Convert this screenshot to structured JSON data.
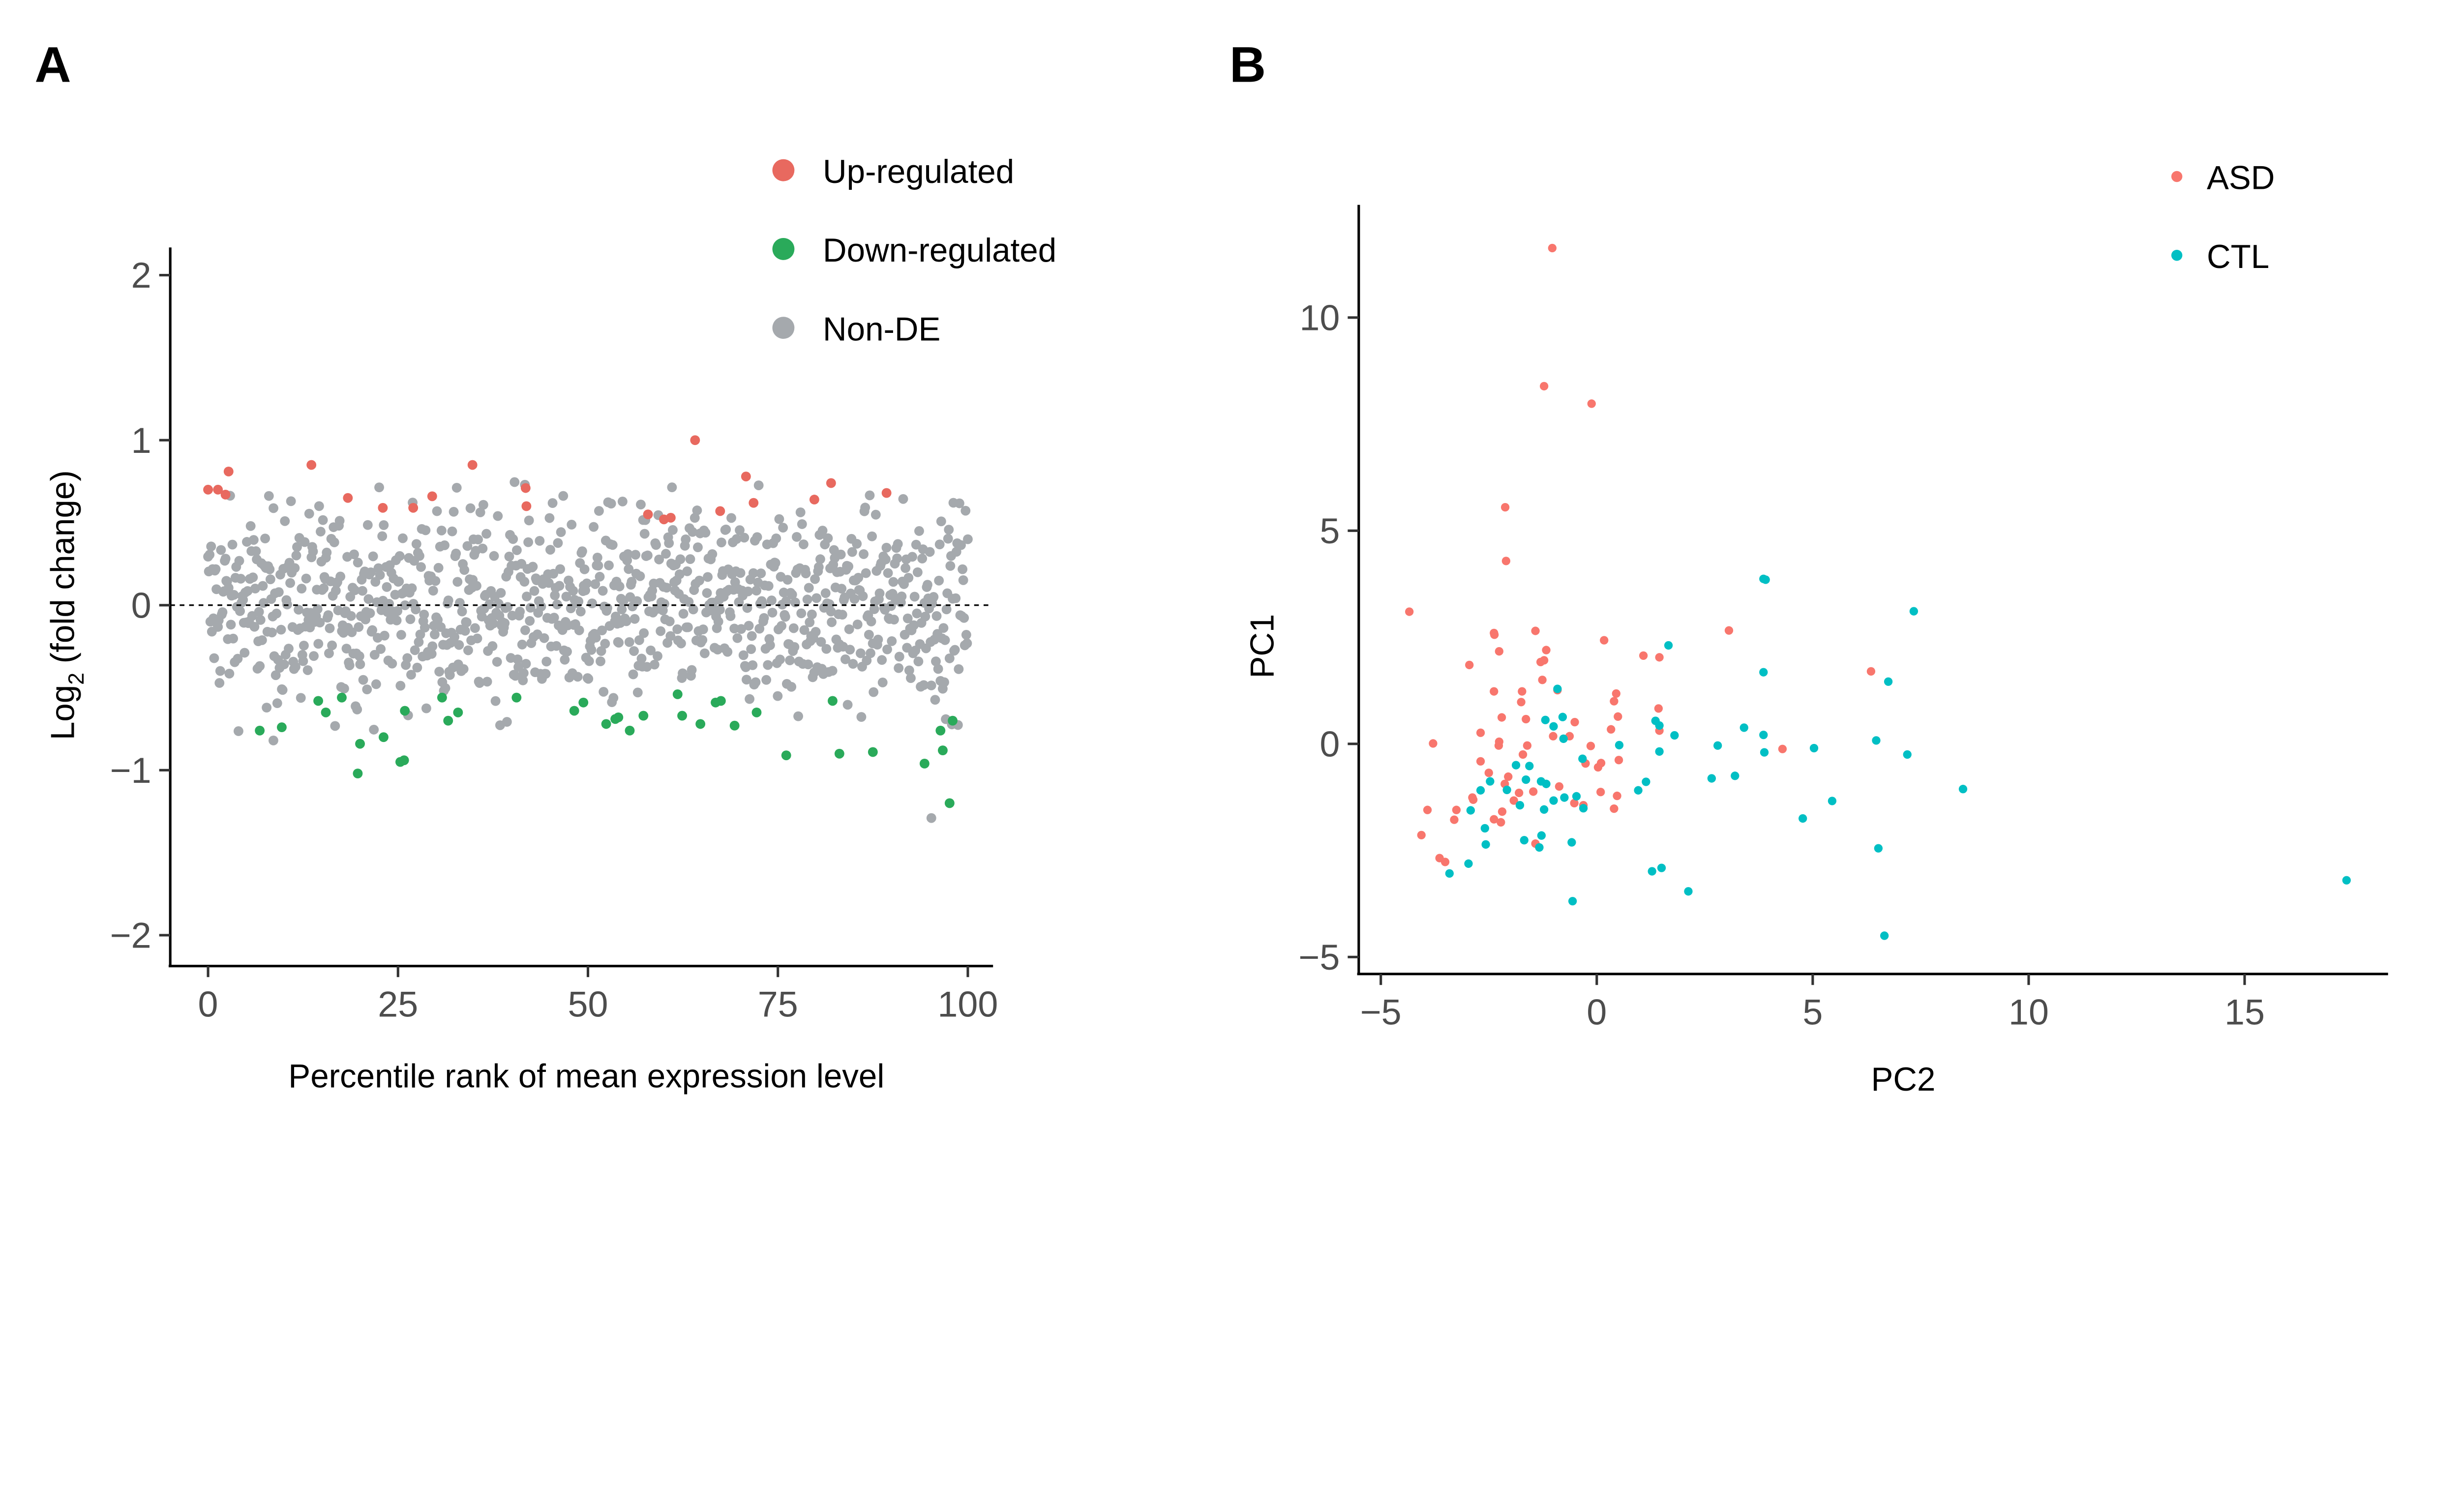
{
  "chart_data": [
    {
      "panel": "A",
      "type": "scatter",
      "xlabel": "Percentile rank of mean expression level",
      "ylabel_main": "Log",
      "ylabel_sub": "2",
      "ylabel_rest": " (fold change)",
      "xlim": [
        0,
        100
      ],
      "ylim": [
        -2,
        2
      ],
      "xticks": [
        0,
        25,
        50,
        75,
        100
      ],
      "yticks": [
        -2,
        -1,
        0,
        1,
        2
      ],
      "ytick_labels": [
        "−2",
        "−1",
        "0",
        "1",
        "2"
      ],
      "reference_line_y": 0,
      "legend": [
        {
          "label": "Up-regulated",
          "color": "#e8695f"
        },
        {
          "label": "Down-regulated",
          "color": "#2aaa5a"
        },
        {
          "label": "Non-DE",
          "color": "#a5a9ad"
        }
      ],
      "legend_position": "top-right",
      "series": [
        {
          "name": "Up-regulated",
          "color": "#e8695f",
          "points": [
            [
              0,
              0.7
            ],
            [
              1.3,
              0.7
            ],
            [
              2.3,
              0.67
            ],
            [
              2.7,
              0.81
            ],
            [
              13.6,
              0.85
            ],
            [
              18.4,
              0.65
            ],
            [
              23,
              0.59
            ],
            [
              27,
              0.59
            ],
            [
              29.5,
              0.66
            ],
            [
              34.8,
              0.85
            ],
            [
              41.8,
              0.71
            ],
            [
              41.9,
              0.6
            ],
            [
              57.9,
              0.55
            ],
            [
              60,
              0.52
            ],
            [
              60.9,
              0.53
            ],
            [
              64.1,
              1.0
            ],
            [
              67.4,
              0.57
            ],
            [
              70.8,
              0.78
            ],
            [
              71.8,
              0.62
            ],
            [
              79.8,
              0.64
            ],
            [
              82,
              0.74
            ],
            [
              89.3,
              0.68
            ]
          ]
        },
        {
          "name": "Down-regulated",
          "color": "#2aaa5a",
          "points": [
            [
              6.8,
              -0.76
            ],
            [
              9.7,
              -0.74
            ],
            [
              14.5,
              -0.58
            ],
            [
              15.5,
              -0.65
            ],
            [
              17.6,
              -0.56
            ],
            [
              20,
              -0.84
            ],
            [
              19.7,
              -1.02
            ],
            [
              23.1,
              -0.8
            ],
            [
              25.3,
              -0.95
            ],
            [
              25.8,
              -0.94
            ],
            [
              25.9,
              -0.64
            ],
            [
              30.8,
              -0.56
            ],
            [
              31.6,
              -0.7
            ],
            [
              32.9,
              -0.65
            ],
            [
              40.6,
              -0.56
            ],
            [
              48.2,
              -0.64
            ],
            [
              49.4,
              -0.59
            ],
            [
              52.4,
              -0.72
            ],
            [
              53.6,
              -0.69
            ],
            [
              54,
              -0.68
            ],
            [
              55.5,
              -0.76
            ],
            [
              57.3,
              -0.67
            ],
            [
              61.8,
              -0.54
            ],
            [
              62.4,
              -0.67
            ],
            [
              64.8,
              -0.72
            ],
            [
              66.8,
              -0.59
            ],
            [
              67.5,
              -0.58
            ],
            [
              69.3,
              -0.73
            ],
            [
              72.2,
              -0.65
            ],
            [
              76.1,
              -0.91
            ],
            [
              82.2,
              -0.58
            ],
            [
              83.1,
              -0.9
            ],
            [
              87.5,
              -0.89
            ],
            [
              94.3,
              -0.96
            ],
            [
              96.4,
              -0.76
            ],
            [
              96.7,
              -0.88
            ],
            [
              97.6,
              -1.2
            ],
            [
              98,
              -0.7
            ]
          ]
        },
        {
          "name": "Non-DE",
          "color": "#a5a9ad",
          "count": 1000,
          "y_spread": [
            -0.8,
            0.75
          ],
          "outliers": [
            [
              95.2,
              -1.29
            ],
            [
              8.6,
              -0.82
            ],
            [
              41.7,
              0.73
            ]
          ]
        }
      ]
    },
    {
      "panel": "B",
      "type": "scatter",
      "xlabel": "PC2",
      "ylabel": "PC1",
      "xlim": [
        -5.5,
        18.5
      ],
      "ylim": [
        -5.3,
        12.3
      ],
      "xticks": [
        -5,
        0,
        5,
        10,
        15
      ],
      "xtick_labels": [
        "−5",
        "0",
        "5",
        "10",
        "15"
      ],
      "yticks": [
        -5,
        0,
        5,
        10
      ],
      "ytick_labels": [
        "−5",
        "0",
        "5",
        "10"
      ],
      "legend": [
        {
          "label": "ASD",
          "color": "#f8766d"
        },
        {
          "label": "CTL",
          "color": "#00bfc4"
        }
      ],
      "legend_position": "top-right",
      "series": [
        {
          "name": "ASD",
          "color": "#f8766d",
          "points": [
            [
              -1.03,
              11.63
            ],
            [
              -1.22,
              8.39
            ],
            [
              -0.12,
              7.98
            ],
            [
              -2.12,
              5.55
            ],
            [
              -2.1,
              4.29
            ],
            [
              -4.34,
              3.1
            ],
            [
              -2.38,
              2.6
            ],
            [
              -2.37,
              2.56
            ],
            [
              -1.42,
              2.65
            ],
            [
              -2.26,
              2.17
            ],
            [
              -1.17,
              2.2
            ],
            [
              -1.3,
              1.92
            ],
            [
              -1.22,
              1.96
            ],
            [
              -2.95,
              1.85
            ],
            [
              0.17,
              2.43
            ],
            [
              1.08,
              2.07
            ],
            [
              1.45,
              2.03
            ],
            [
              3.06,
              2.66
            ],
            [
              -1.26,
              1.5
            ],
            [
              -2.38,
              1.23
            ],
            [
              -1.73,
              1.23
            ],
            [
              -0.91,
              1.26
            ],
            [
              -1.75,
              0.98
            ],
            [
              0.45,
              1.18
            ],
            [
              0.4,
              1.0
            ],
            [
              1.43,
              0.83
            ],
            [
              -2.2,
              0.62
            ],
            [
              -1.64,
              0.58
            ],
            [
              0.49,
              0.64
            ],
            [
              -2.69,
              0.26
            ],
            [
              -0.51,
              0.51
            ],
            [
              -1.01,
              0.18
            ],
            [
              -0.63,
              0.18
            ],
            [
              0.33,
              0.34
            ],
            [
              1.45,
              0.31
            ],
            [
              -3.79,
              0.01
            ],
            [
              -2.26,
              0.05
            ],
            [
              -2.27,
              -0.04
            ],
            [
              -1.61,
              -0.04
            ],
            [
              -0.14,
              -0.05
            ],
            [
              4.3,
              -0.12
            ],
            [
              6.35,
              1.7
            ],
            [
              -1.71,
              -0.25
            ],
            [
              -2.69,
              -0.41
            ],
            [
              -0.26,
              -0.46
            ],
            [
              0.1,
              -0.45
            ],
            [
              0.03,
              -0.55
            ],
            [
              0.51,
              -0.38
            ],
            [
              -2.5,
              -0.68
            ],
            [
              -2.05,
              -0.77
            ],
            [
              -2.13,
              -0.94
            ],
            [
              -0.87,
              -1.0
            ],
            [
              -1.8,
              -1.15
            ],
            [
              -1.47,
              -1.12
            ],
            [
              0.09,
              -1.13
            ],
            [
              0.47,
              -1.22
            ],
            [
              -2.88,
              -1.26
            ],
            [
              -2.86,
              -1.31
            ],
            [
              -1.92,
              -1.33
            ],
            [
              -0.52,
              -1.39
            ],
            [
              -0.31,
              -1.44
            ],
            [
              0.4,
              -1.52
            ],
            [
              -3.92,
              -1.55
            ],
            [
              -3.25,
              -1.55
            ],
            [
              -3.3,
              -1.78
            ],
            [
              -2.38,
              -1.77
            ],
            [
              -2.22,
              -1.84
            ],
            [
              -2.19,
              -1.59
            ],
            [
              -4.06,
              -2.14
            ],
            [
              -1.42,
              -2.34
            ],
            [
              -3.64,
              -2.68
            ],
            [
              -3.51,
              -2.77
            ]
          ]
        },
        {
          "name": "CTL",
          "color": "#00bfc4",
          "points": [
            [
              3.86,
              3.87
            ],
            [
              3.91,
              3.85
            ],
            [
              7.34,
              3.11
            ],
            [
              1.66,
              2.31
            ],
            [
              3.86,
              1.68
            ],
            [
              6.75,
              1.46
            ],
            [
              -0.91,
              1.29
            ],
            [
              -0.79,
              0.63
            ],
            [
              -1.19,
              0.56
            ],
            [
              -1.0,
              0.41
            ],
            [
              -0.77,
              0.12
            ],
            [
              1.36,
              0.54
            ],
            [
              1.45,
              0.43
            ],
            [
              3.41,
              0.38
            ],
            [
              1.8,
              0.2
            ],
            [
              3.86,
              0.21
            ],
            [
              0.52,
              -0.03
            ],
            [
              2.8,
              -0.04
            ],
            [
              5.03,
              -0.1
            ],
            [
              6.47,
              0.08
            ],
            [
              7.19,
              -0.25
            ],
            [
              1.45,
              -0.18
            ],
            [
              3.88,
              -0.2
            ],
            [
              -0.33,
              -0.35
            ],
            [
              -1.87,
              -0.5
            ],
            [
              -1.56,
              -0.52
            ],
            [
              -2.47,
              -0.88
            ],
            [
              -1.64,
              -0.84
            ],
            [
              -1.29,
              -0.88
            ],
            [
              -1.17,
              -0.94
            ],
            [
              1.14,
              -0.89
            ],
            [
              0.96,
              -1.09
            ],
            [
              2.66,
              -0.81
            ],
            [
              3.2,
              -0.75
            ],
            [
              -2.69,
              -1.09
            ],
            [
              -2.08,
              -1.08
            ],
            [
              -1.78,
              -1.44
            ],
            [
              -1.22,
              -1.54
            ],
            [
              -1.0,
              -1.33
            ],
            [
              -0.75,
              -1.26
            ],
            [
              -0.47,
              -1.23
            ],
            [
              -0.31,
              -1.51
            ],
            [
              -2.92,
              -1.56
            ],
            [
              8.48,
              -1.06
            ],
            [
              5.45,
              -1.34
            ],
            [
              4.77,
              -1.75
            ],
            [
              -2.59,
              -1.98
            ],
            [
              -1.28,
              -2.15
            ],
            [
              -1.68,
              -2.26
            ],
            [
              -0.58,
              -2.31
            ],
            [
              -2.57,
              -2.36
            ],
            [
              -1.33,
              -2.43
            ],
            [
              6.52,
              -2.45
            ],
            [
              -2.97,
              -2.81
            ],
            [
              -3.41,
              -3.04
            ],
            [
              1.28,
              -2.99
            ],
            [
              1.5,
              -2.91
            ],
            [
              2.12,
              -3.46
            ],
            [
              -0.56,
              -3.69
            ],
            [
              17.36,
              -3.2
            ],
            [
              6.66,
              -4.5
            ]
          ]
        }
      ]
    }
  ]
}
